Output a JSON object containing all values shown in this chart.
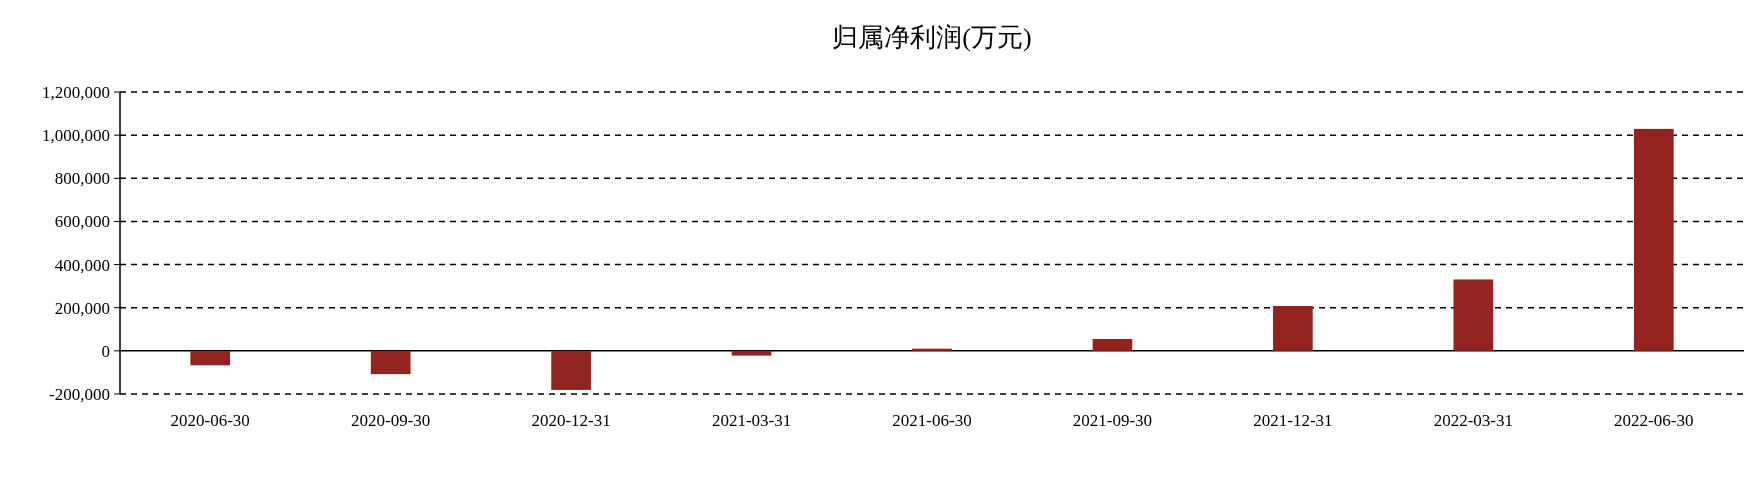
{
  "chart_data": {
    "type": "bar",
    "title": "归属净利润(万元)",
    "categories": [
      "2020-06-30",
      "2020-09-30",
      "2020-12-31",
      "2021-03-31",
      "2021-06-30",
      "2021-09-30",
      "2021-12-31",
      "2022-03-31",
      "2022-06-30"
    ],
    "values": [
      -67000,
      -108000,
      -181000,
      -22000,
      10000,
      55000,
      208000,
      331000,
      1029000
    ],
    "color": "#93231e",
    "ylim": [
      -200000,
      1200000
    ],
    "yticks": [
      {
        "value": -200000,
        "label": "-200,000"
      },
      {
        "value": 0,
        "label": "0"
      },
      {
        "value": 200000,
        "label": "200,000"
      },
      {
        "value": 400000,
        "label": "400,000"
      },
      {
        "value": 600000,
        "label": "600,000"
      },
      {
        "value": 800000,
        "label": "800,000"
      },
      {
        "value": 1000000,
        "label": "1,000,000"
      },
      {
        "value": 1200000,
        "label": "1,200,000"
      }
    ],
    "grid": "y"
  }
}
